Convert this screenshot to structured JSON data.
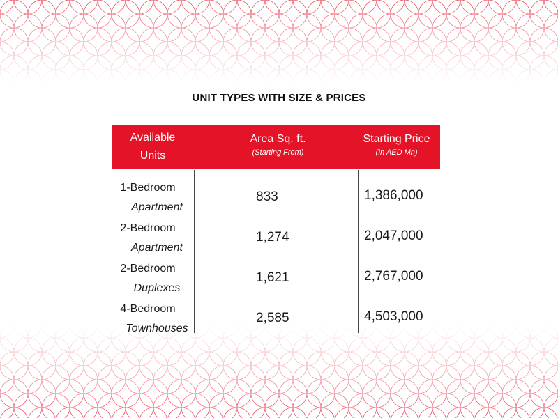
{
  "title": "UNIT TYPES WITH SIZE & PRICES",
  "table": {
    "headers": {
      "units": {
        "line1": "Available",
        "line2": "Units"
      },
      "area": {
        "main": "Area Sq. ft.",
        "sub": "(Starting From)"
      },
      "price": {
        "main": "Starting Price",
        "sub": "(In AED Mn)"
      }
    },
    "rows": [
      {
        "type": "1-Bedroom",
        "subtype": "Apartment",
        "area": "833",
        "price": "1,386,000"
      },
      {
        "type": "2-Bedroom",
        "subtype": "Apartment",
        "area": "1,274",
        "price": "2,047,000"
      },
      {
        "type": "2-Bedroom",
        "subtype": "Duplexes",
        "area": "1,621",
        "price": "2,767,000"
      },
      {
        "type": "4-Bedroom",
        "subtype": "Townhouses",
        "area": "2,585",
        "price": "4,503,000"
      }
    ]
  },
  "colors": {
    "accent": "#e41327",
    "pattern": "#e8485a",
    "text": "#1a1a1a"
  }
}
